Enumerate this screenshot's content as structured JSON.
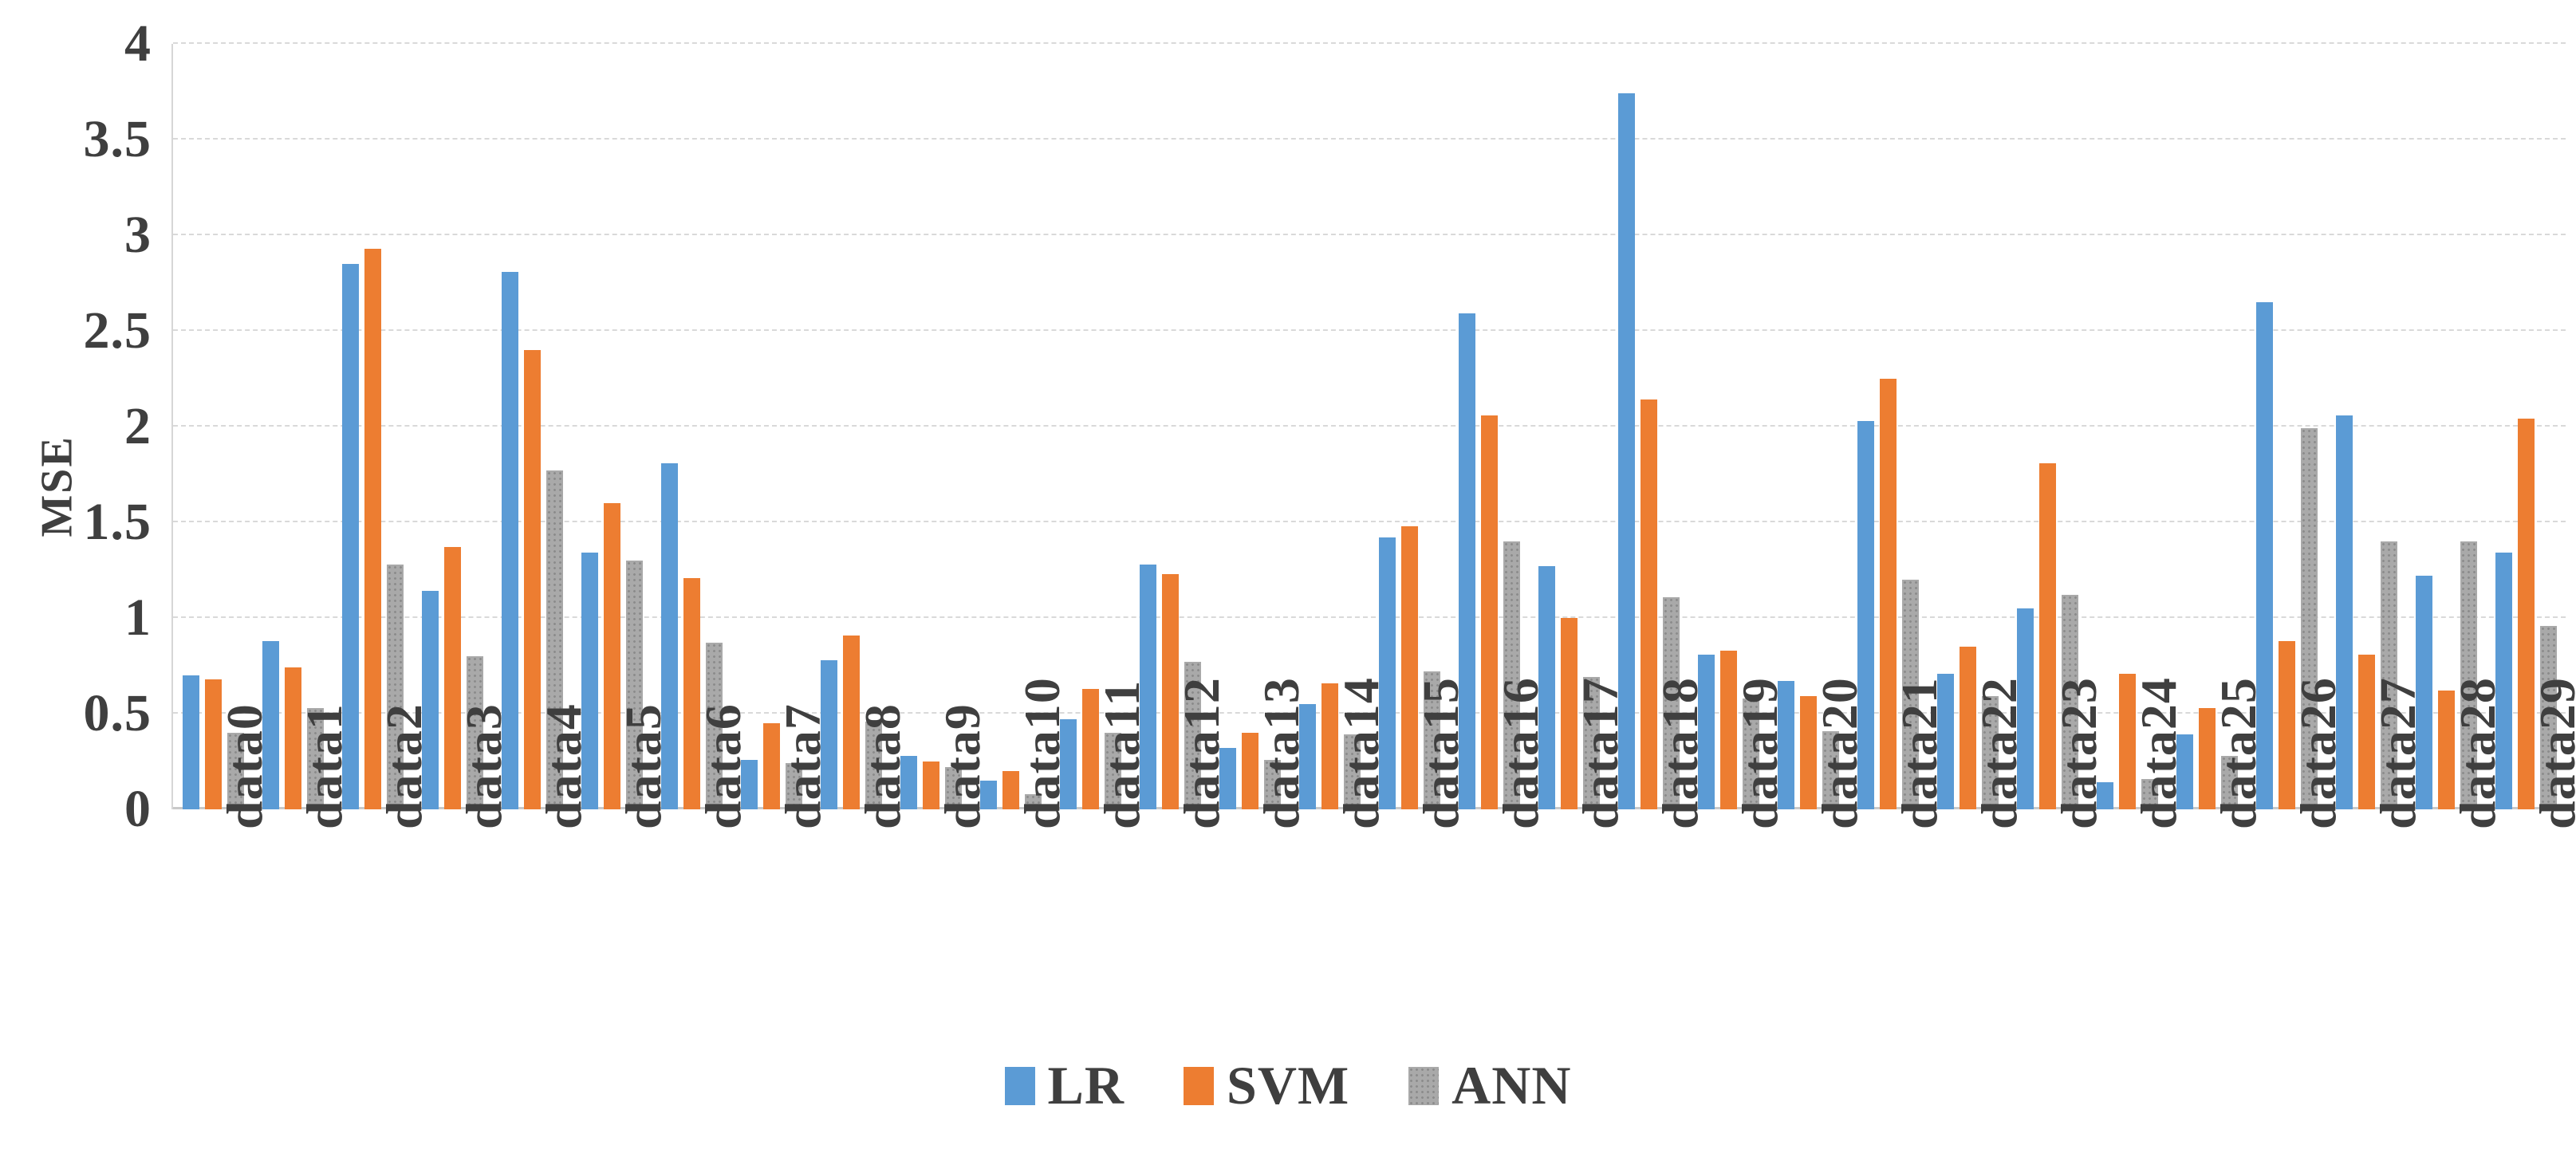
{
  "chart_data": {
    "type": "bar",
    "title": "",
    "xlabel": "",
    "ylabel": "MSE",
    "ylim": [
      0,
      4
    ],
    "ytick_step": 0.5,
    "yticks": [
      "0",
      "0.5",
      "1",
      "1.5",
      "2",
      "2.5",
      "3",
      "3.5",
      "4"
    ],
    "ytick_values": [
      0,
      0.5,
      1,
      1.5,
      2,
      2.5,
      3,
      3.5,
      4
    ],
    "grid": "horizontal-dashed",
    "legend_position": "bottom-center",
    "categories": [
      "data0",
      "data1",
      "data2",
      "data3",
      "data4",
      "data5",
      "data6",
      "data7",
      "data8",
      "data9",
      "data10",
      "data11",
      "data12",
      "data13",
      "data14",
      "data15",
      "data16",
      "data17",
      "data18",
      "data19",
      "data20",
      "data21",
      "data22",
      "data23",
      "data24",
      "data25",
      "data26",
      "data27",
      "data28",
      "data29"
    ],
    "series": [
      {
        "name": "LR",
        "color": "#5b9bd5",
        "values": [
          0.7,
          0.88,
          2.85,
          1.14,
          2.81,
          1.34,
          1.81,
          0.26,
          0.78,
          0.28,
          0.15,
          0.47,
          1.28,
          0.32,
          0.55,
          1.42,
          2.59,
          1.27,
          3.74,
          0.81,
          0.67,
          2.03,
          0.71,
          1.05,
          0.14,
          0.39,
          2.65,
          2.06,
          1.22,
          1.34
        ]
      },
      {
        "name": "SVM",
        "color": "#ed7d31",
        "values": [
          0.68,
          0.74,
          2.93,
          1.37,
          2.4,
          1.6,
          1.21,
          0.45,
          0.91,
          0.25,
          0.2,
          0.63,
          1.23,
          0.4,
          0.66,
          1.48,
          2.06,
          1.0,
          2.14,
          0.83,
          0.59,
          2.25,
          0.85,
          1.81,
          0.71,
          0.53,
          0.88,
          0.81,
          0.62,
          2.04
        ]
      },
      {
        "name": "ANN",
        "color": "#a9a9a9",
        "values": [
          0.4,
          0.53,
          1.28,
          0.8,
          1.77,
          1.3,
          0.87,
          0.24,
          0.46,
          0.22,
          0.08,
          0.4,
          0.77,
          0.26,
          0.39,
          0.72,
          1.4,
          0.69,
          1.11,
          0.58,
          0.41,
          1.2,
          0.59,
          1.12,
          0.16,
          0.28,
          1.99,
          1.4,
          1.4,
          0.96
        ]
      }
    ]
  },
  "axis": {
    "y_title": "MSE"
  },
  "colors": {
    "lr": "#5b9bd5",
    "svm": "#ed7d31",
    "ann": "#a9a9a9",
    "text": "#3f3f3f",
    "gridline": "#d9d9d9"
  }
}
